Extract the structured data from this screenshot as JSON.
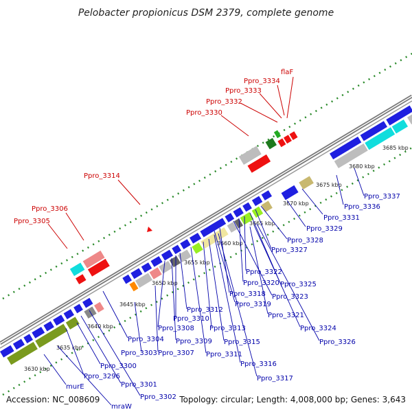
{
  "title": "Pelobacter propionicus DSM 2379, complete genome",
  "footer": {
    "accession": "Accession: NC_008609",
    "summary": "Topology: circular; Length: 4,008,000 bp; Genes: 3,643"
  },
  "colors": {
    "backbone": "#7a7a7a",
    "red_label": "#cc0000",
    "blue_label": "#0000aa",
    "gene_blue": "#1f1fe0",
    "gene_red": "#ee1111",
    "gene_olive": "#7a9a1e",
    "gene_gray": "#bdbdbd",
    "gene_cyan": "#11dddd",
    "gene_pink": "#ee8888",
    "gene_khaki": "#f0e6a0",
    "gene_lime": "#99ee22",
    "dots": "#2a8a2a"
  },
  "ticks": [
    "3630 kbp",
    "3635 kbp",
    "3640 kbp",
    "3645 kbp",
    "3650 kbp",
    "3655 kbp",
    "3660 kbp",
    "3665 kbp",
    "3670 kbp",
    "3675 kbp",
    "3680 kbp",
    "3685 kbp"
  ],
  "red_labels": [
    "flaF",
    "Ppro_3334",
    "Ppro_3333",
    "Ppro_3332",
    "Ppro_3330",
    "Ppro_3314",
    "Ppro_3306",
    "Ppro_3305"
  ],
  "blue_labels": [
    "Ppro_3337",
    "Ppro_3336",
    "Ppro_3331",
    "Ppro_3329",
    "Ppro_3328",
    "Ppro_3327",
    "Ppro_3325",
    "Ppro_3322",
    "Ppro_3320",
    "Ppro_3323",
    "Ppro_3318",
    "Ppro_3319",
    "Ppro_3321",
    "Ppro_3324",
    "Ppro_3326",
    "Ppro_3312",
    "Ppro_3310",
    "Ppro_3313",
    "Ppro_3315",
    "Ppro_3308",
    "Ppro_3309",
    "Ppro_3311",
    "Ppro_3316",
    "Ppro_3317",
    "Ppro_3304",
    "Ppro_3303",
    "Ppro_3307",
    "Ppro_3300",
    "Ppro_3296",
    "Ppro_3301",
    "Ppro_3302",
    "murE",
    "mraW"
  ]
}
